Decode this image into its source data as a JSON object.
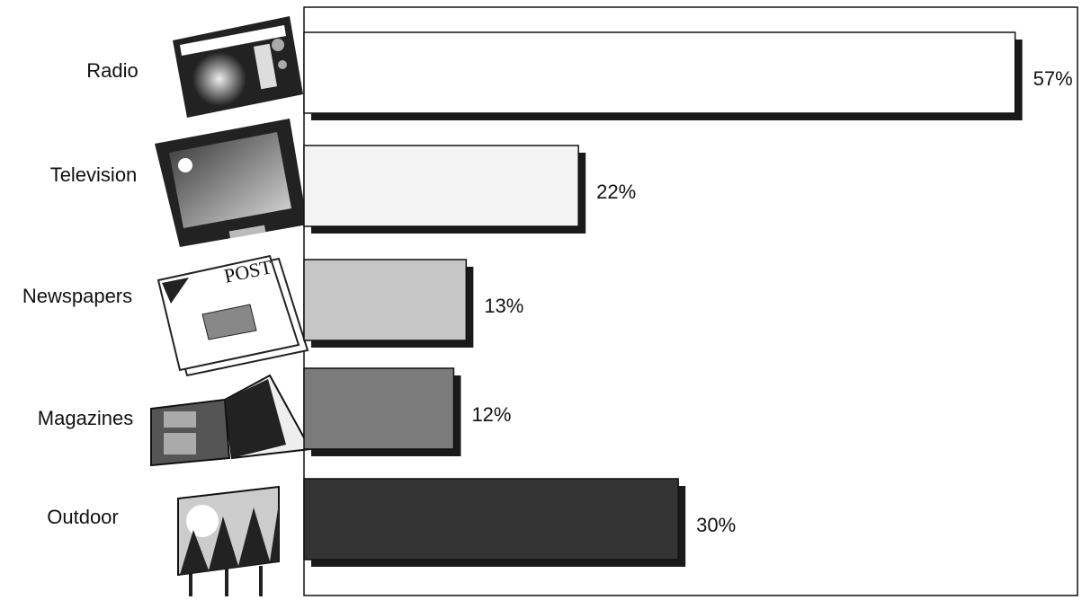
{
  "chart_data": {
    "type": "hbar",
    "categories": [
      "Radio",
      "Television",
      "Newspapers",
      "Magazines",
      "Outdoor"
    ],
    "values": [
      57,
      22,
      13,
      12,
      30
    ],
    "value_labels": [
      "57%",
      "22%",
      "13%",
      "12%",
      "30%"
    ],
    "colors": [
      "#ffffff",
      "#f3f3f3",
      "#c6c6c6",
      "#7b7b7b",
      "#343434"
    ],
    "xlim": [
      0,
      62
    ]
  }
}
